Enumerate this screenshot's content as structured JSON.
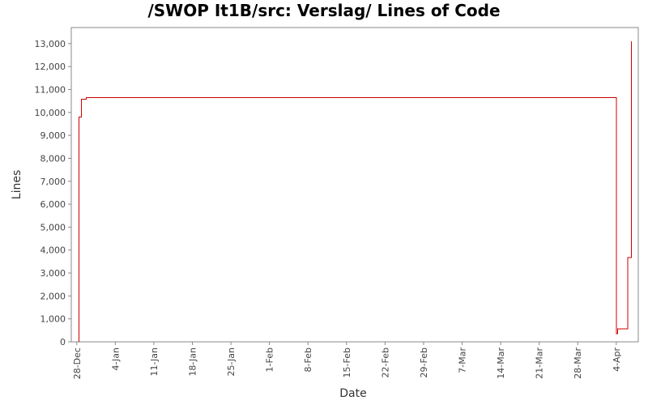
{
  "chart_data": {
    "type": "line",
    "title": "/SWOP It1B/src: Verslag/ Lines of Code",
    "xlabel": "Date",
    "ylabel": "Lines",
    "ylim": [
      0,
      13700
    ],
    "xlim": [
      "2007-12-27",
      "2008-04-08"
    ],
    "y_ticks": [
      {
        "value": 0,
        "label": "0"
      },
      {
        "value": 1000,
        "label": "1,000"
      },
      {
        "value": 2000,
        "label": "2,000"
      },
      {
        "value": 3000,
        "label": "3,000"
      },
      {
        "value": 4000,
        "label": "4,000"
      },
      {
        "value": 5000,
        "label": "5,000"
      },
      {
        "value": 6000,
        "label": "6,000"
      },
      {
        "value": 7000,
        "label": "7,000"
      },
      {
        "value": 8000,
        "label": "8,000"
      },
      {
        "value": 9000,
        "label": "9,000"
      },
      {
        "value": 10000,
        "label": "10,000"
      },
      {
        "value": 11000,
        "label": "11,000"
      },
      {
        "value": 12000,
        "label": "12,000"
      },
      {
        "value": 13000,
        "label": "13,000"
      }
    ],
    "x_ticks": [
      {
        "date": "2007-12-28",
        "label": "28-Dec"
      },
      {
        "date": "2008-01-04",
        "label": "4-Jan"
      },
      {
        "date": "2008-01-11",
        "label": "11-Jan"
      },
      {
        "date": "2008-01-18",
        "label": "18-Jan"
      },
      {
        "date": "2008-01-25",
        "label": "25-Jan"
      },
      {
        "date": "2008-02-01",
        "label": "1-Feb"
      },
      {
        "date": "2008-02-08",
        "label": "8-Feb"
      },
      {
        "date": "2008-02-15",
        "label": "15-Feb"
      },
      {
        "date": "2008-02-22",
        "label": "22-Feb"
      },
      {
        "date": "2008-02-29",
        "label": "29-Feb"
      },
      {
        "date": "2008-03-07",
        "label": "7-Mar"
      },
      {
        "date": "2008-03-14",
        "label": "14-Mar"
      },
      {
        "date": "2008-03-21",
        "label": "21-Mar"
      },
      {
        "date": "2008-03-28",
        "label": "28-Mar"
      },
      {
        "date": "2008-04-04",
        "label": "4-Apr"
      }
    ],
    "series": [
      {
        "color": "#cc0000",
        "step": true,
        "points": [
          {
            "date": "2007-12-28 10:00",
            "value": 0
          },
          {
            "date": "2007-12-28 10:00",
            "value": 9800
          },
          {
            "date": "2007-12-28 20:00",
            "value": 9800
          },
          {
            "date": "2007-12-28 20:00",
            "value": 10580
          },
          {
            "date": "2007-12-29 17:00",
            "value": 10580
          },
          {
            "date": "2007-12-29 17:00",
            "value": 10650
          },
          {
            "date": "2008-04-04 00:00",
            "value": 10650
          },
          {
            "date": "2008-04-04 00:00",
            "value": 350
          },
          {
            "date": "2008-04-04 06:00",
            "value": 350
          },
          {
            "date": "2008-04-04 06:00",
            "value": 560
          },
          {
            "date": "2008-04-06 02:00",
            "value": 560
          },
          {
            "date": "2008-04-06 02:00",
            "value": 3680
          },
          {
            "date": "2008-04-06 18:00",
            "value": 3680
          },
          {
            "date": "2008-04-06 18:00",
            "value": 13100
          }
        ]
      }
    ],
    "grid": false,
    "legend": "none",
    "background": "#ffffff",
    "plot_border_color": "#888888"
  }
}
